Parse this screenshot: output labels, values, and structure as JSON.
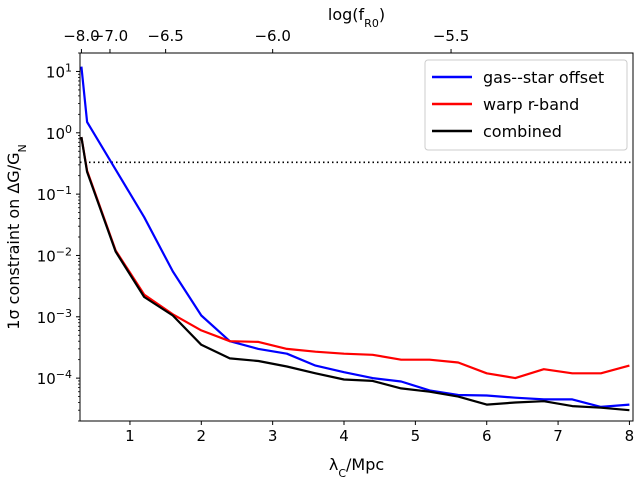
{
  "chart_data": {
    "type": "line",
    "xlabel": "λ",
    "xlabel_sub": "C",
    "xlabel_suffix": "/Mpc",
    "ylabel_prefix": "1σ constraint on ΔG/G",
    "ylabel_sub": "N",
    "top_label": "log(f",
    "top_label_sub": "R0",
    "top_label_suffix": ")",
    "xlim": [
      0.3,
      8.05
    ],
    "ylim": [
      2e-05,
      20
    ],
    "yscale": "log",
    "x_ticks": [
      2,
      4,
      6
    ],
    "x_tick_labels": [
      "1",
      "2",
      "3",
      "4",
      "5",
      "6",
      "7",
      "8"
    ],
    "x_tick_values": [
      1,
      2,
      3,
      4,
      5,
      6,
      7,
      8
    ],
    "y_tick_values": [
      0.0001,
      0.001,
      0.01,
      0.1,
      1,
      10
    ],
    "y_tick_base": "10",
    "y_tick_exponents": [
      "−4",
      "−3",
      "−2",
      "−1",
      "0",
      "1"
    ],
    "top_ticks": [
      {
        "x": 0.32,
        "label": "−8.0"
      },
      {
        "x": 0.72,
        "label": "−7.0"
      },
      {
        "x": 1.5,
        "label": "−6.5"
      },
      {
        "x": 3.0,
        "label": "−6.0"
      },
      {
        "x": 5.5,
        "label": "−5.5"
      }
    ],
    "hline": {
      "y": 0.33,
      "style": "dotted",
      "color": "#000000"
    },
    "legend_position": "top-right",
    "series": [
      {
        "name": "gas--star offset",
        "color": "#0000ff",
        "x": [
          0.32,
          0.4,
          0.8,
          1.2,
          1.6,
          2.0,
          2.4,
          2.8,
          3.2,
          3.6,
          4.0,
          4.4,
          4.8,
          5.2,
          5.6,
          6.0,
          6.4,
          6.8,
          7.2,
          7.6,
          8.0
        ],
        "y": [
          12,
          1.5,
          0.25,
          0.042,
          0.0055,
          0.00105,
          0.0004,
          0.0003,
          0.00025,
          0.00016,
          0.000125,
          0.0001,
          8.8e-05,
          6.3e-05,
          5.3e-05,
          5.2e-05,
          4.8e-05,
          4.5e-05,
          4.5e-05,
          3.4e-05,
          3.7e-05
        ]
      },
      {
        "name": "warp r-band",
        "color": "#ff0000",
        "x": [
          0.32,
          0.4,
          0.8,
          1.2,
          1.6,
          2.0,
          2.4,
          2.8,
          3.2,
          3.6,
          4.0,
          4.4,
          4.8,
          5.2,
          5.6,
          6.0,
          6.4,
          6.8,
          7.2,
          7.6,
          8.0
        ],
        "y": [
          0.85,
          0.24,
          0.012,
          0.0023,
          0.0011,
          0.0006,
          0.0004,
          0.00039,
          0.0003,
          0.00027,
          0.00025,
          0.00024,
          0.0002,
          0.0002,
          0.00018,
          0.00012,
          0.0001,
          0.00014,
          0.00012,
          0.00012,
          0.00016
        ]
      },
      {
        "name": "combined",
        "color": "#000000",
        "x": [
          0.32,
          0.4,
          0.8,
          1.2,
          1.6,
          2.0,
          2.4,
          2.8,
          3.2,
          3.6,
          4.0,
          4.4,
          4.8,
          5.2,
          5.6,
          6.0,
          6.4,
          6.8,
          7.2,
          7.6,
          8.0
        ],
        "y": [
          0.85,
          0.23,
          0.0115,
          0.0021,
          0.00105,
          0.00035,
          0.00021,
          0.00019,
          0.000155,
          0.00012,
          9.5e-05,
          9e-05,
          6.8e-05,
          6e-05,
          5e-05,
          3.7e-05,
          4e-05,
          4.2e-05,
          3.5e-05,
          3.3e-05,
          3e-05
        ]
      }
    ]
  }
}
